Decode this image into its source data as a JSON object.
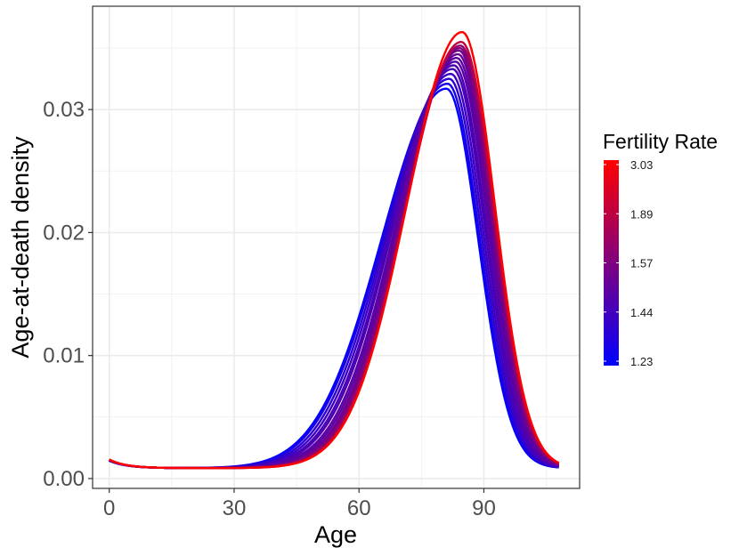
{
  "chart_data": {
    "type": "line",
    "title": "",
    "xlabel": "Age",
    "ylabel": "Age-at-death density",
    "xlim": [
      -4,
      113
    ],
    "ylim": [
      -0.0008,
      0.0384
    ],
    "x_ticks": [
      0,
      30,
      60,
      90
    ],
    "x_tick_labels": [
      "0",
      "30",
      "60",
      "90"
    ],
    "y_ticks": [
      0.0,
      0.01,
      0.02,
      0.03
    ],
    "y_tick_labels": [
      "0.00",
      "0.01",
      "0.02",
      "0.03"
    ],
    "grid": true,
    "legend": {
      "title": "Fertility Rate",
      "position": "right",
      "type": "colorbar",
      "labels": [
        "3.03",
        "1.89",
        "1.57",
        "1.44",
        "1.23"
      ],
      "color_high": "#FF0000",
      "color_low": "#0000FF"
    },
    "series_description": "Family of age-at-death density curves colored by fertility rate",
    "series": [
      {
        "fertility": 1.23,
        "peak_age": 81.0,
        "peak": 0.0317
      },
      {
        "fertility": 1.26,
        "peak_age": 81.3,
        "peak": 0.0321
      },
      {
        "fertility": 1.31,
        "peak_age": 81.7,
        "peak": 0.0325
      },
      {
        "fertility": 1.36,
        "peak_age": 82.1,
        "peak": 0.0329
      },
      {
        "fertility": 1.4,
        "peak_age": 82.5,
        "peak": 0.0333
      },
      {
        "fertility": 1.44,
        "peak_age": 82.8,
        "peak": 0.0336
      },
      {
        "fertility": 1.49,
        "peak_age": 83.2,
        "peak": 0.0339
      },
      {
        "fertility": 1.53,
        "peak_age": 83.5,
        "peak": 0.0342
      },
      {
        "fertility": 1.57,
        "peak_age": 83.8,
        "peak": 0.0345
      },
      {
        "fertility": 1.65,
        "peak_age": 84.0,
        "peak": 0.0348
      },
      {
        "fertility": 1.75,
        "peak_age": 84.2,
        "peak": 0.035
      },
      {
        "fertility": 1.89,
        "peak_age": 84.4,
        "peak": 0.0352
      },
      {
        "fertility": 2.3,
        "peak_age": 84.6,
        "peak": 0.0355
      },
      {
        "fertility": 3.03,
        "peak_age": 84.8,
        "peak": 0.0363
      }
    ],
    "age_range": [
      0,
      108
    ]
  }
}
